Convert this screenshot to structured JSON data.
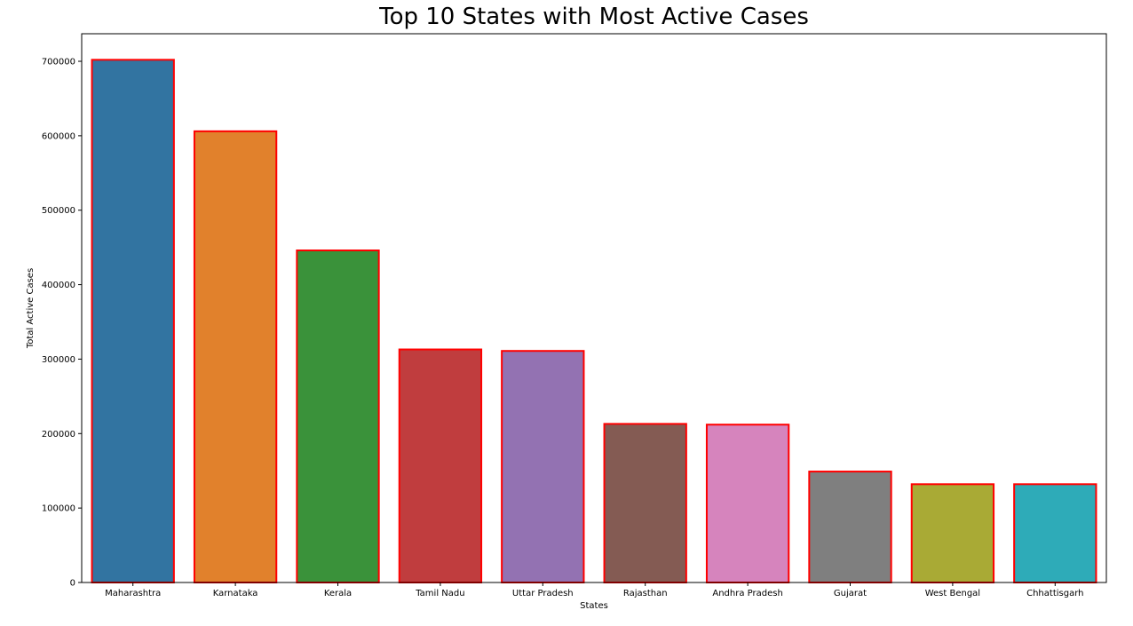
{
  "chart_data": {
    "type": "bar",
    "title": "Top 10 States with Most Active Cases",
    "xlabel": "States",
    "ylabel": "Total Active Cases",
    "categories": [
      "Maharashtra",
      "Karnataka",
      "Kerala",
      "Tamil Nadu",
      "Uttar Pradesh",
      "Rajasthan",
      "Andhra Pradesh",
      "Gujarat",
      "West Bengal",
      "Chhattisgarh"
    ],
    "values": [
      702000,
      606000,
      446000,
      313000,
      311000,
      213000,
      212000,
      149000,
      132000,
      132000
    ],
    "ylim": [
      0,
      737000
    ],
    "yticks": [
      0,
      100000,
      200000,
      300000,
      400000,
      500000,
      600000,
      700000
    ],
    "grid": false,
    "bar_colors": [
      "#3274a1",
      "#e1812c",
      "#3a923a",
      "#c03d3e",
      "#9372b2",
      "#845b53",
      "#d684bd",
      "#7f7f7f",
      "#a9aa35",
      "#2eabb8"
    ],
    "bar_edge_color": "#ff0000"
  }
}
